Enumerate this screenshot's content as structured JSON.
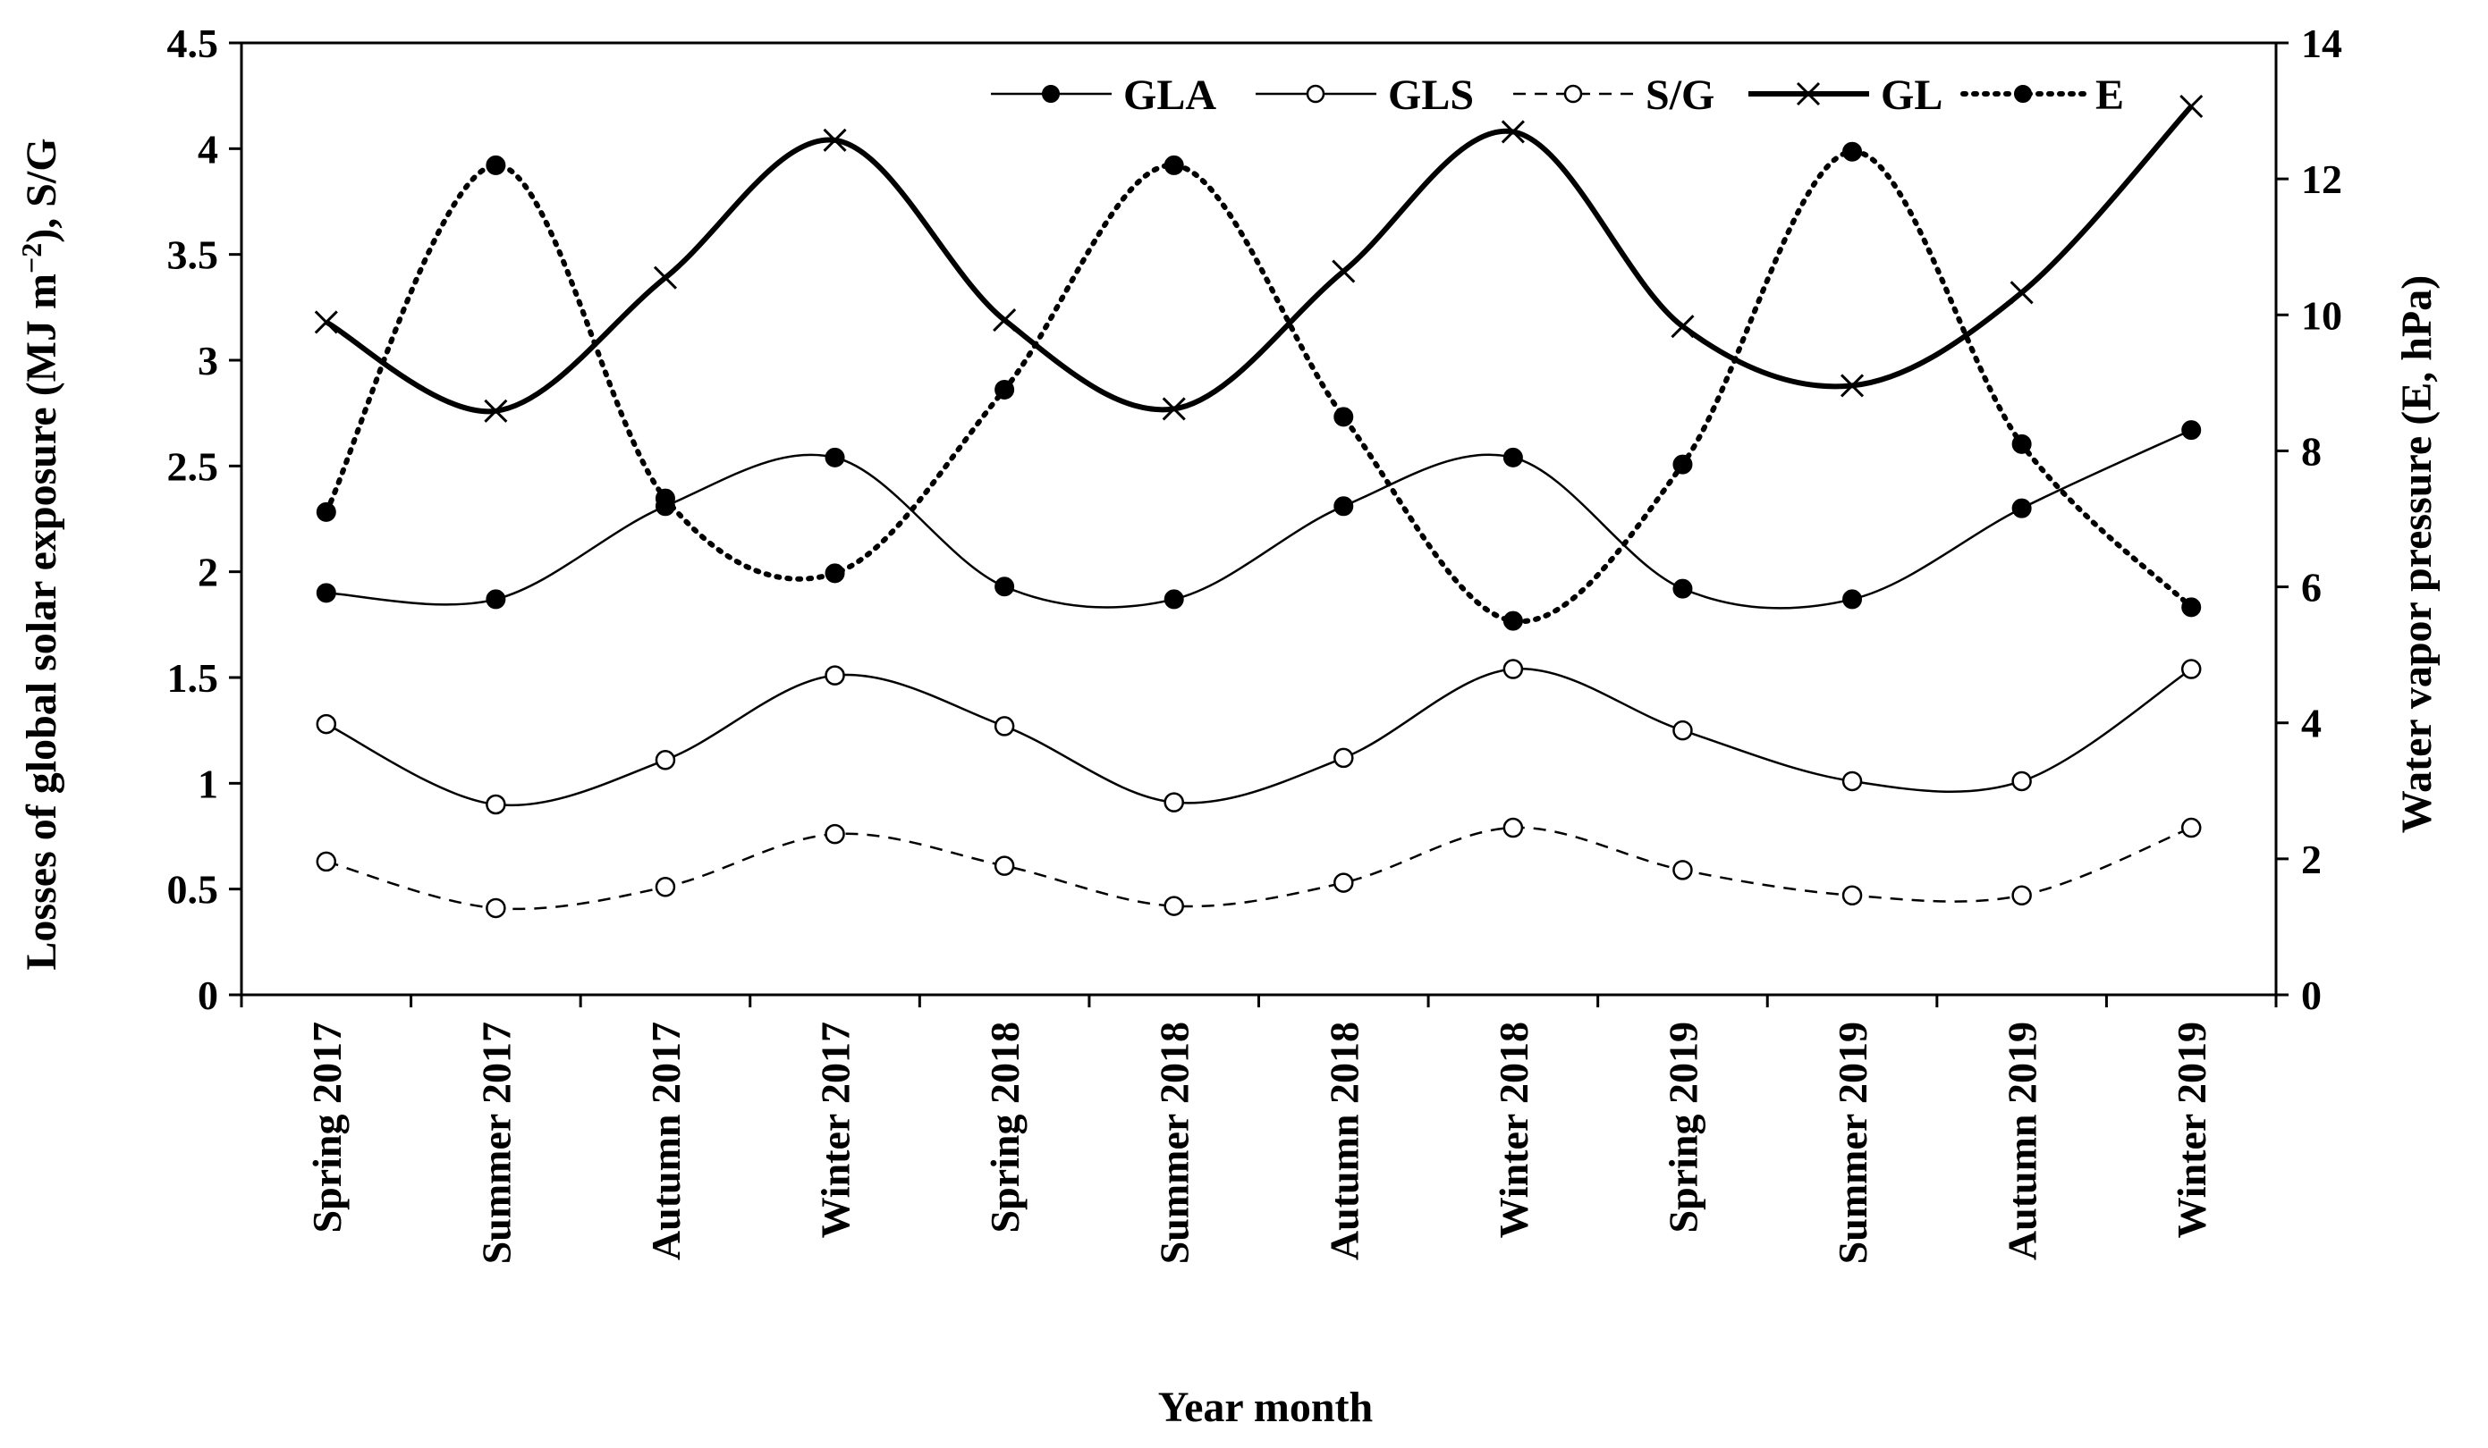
{
  "chart_data": {
    "type": "line",
    "categories": [
      "Spring 2017",
      "Summer 2017",
      "Autumn 2017",
      "Winter 2017",
      "Spring 2018",
      "Summer 2018",
      "Autumn 2018",
      "Winter 2018",
      "Spring 2019",
      "Summer 2019",
      "Autumn 2019",
      "Winter 2019"
    ],
    "xlabel": "Year month",
    "ylabel": "Losses of global solar exposure (MJ m^-2), S/G",
    "ylabel_parts": {
      "before": "Losses of global solar exposure (MJ m",
      "sup": "−2",
      "after": "), S/G"
    },
    "y2label": "Water vapor pressure (E, hPa)",
    "ylim": [
      0,
      4.5
    ],
    "yticks": [
      "0",
      "0.5",
      "1",
      "1.5",
      "2",
      "2.5",
      "3",
      "3.5",
      "4",
      "4.5"
    ],
    "y2lim": [
      0,
      14
    ],
    "y2ticks": [
      "0",
      "2",
      "4",
      "6",
      "8",
      "10",
      "12",
      "14"
    ],
    "legend_position": "top-right",
    "series": [
      {
        "name": "GLA",
        "axis": "left",
        "values": [
          1.9,
          1.87,
          2.31,
          2.54,
          1.93,
          1.87,
          2.31,
          2.54,
          1.92,
          1.87,
          2.3,
          2.67
        ],
        "marker": "filled-circle",
        "line": "thin-solid",
        "color": "#000000"
      },
      {
        "name": "GLS",
        "axis": "left",
        "values": [
          1.28,
          0.9,
          1.11,
          1.51,
          1.27,
          0.91,
          1.12,
          1.54,
          1.25,
          1.01,
          1.01,
          1.54
        ],
        "marker": "open-circle",
        "line": "thin-solid",
        "color": "#000000"
      },
      {
        "name": "S/G",
        "axis": "left",
        "values": [
          0.63,
          0.41,
          0.51,
          0.76,
          0.61,
          0.42,
          0.53,
          0.79,
          0.59,
          0.47,
          0.47,
          0.79
        ],
        "marker": "open-circle",
        "line": "dashed",
        "color": "#000000"
      },
      {
        "name": "GL",
        "axis": "left",
        "values": [
          3.18,
          2.76,
          3.39,
          4.04,
          3.19,
          2.77,
          3.42,
          4.08,
          3.16,
          2.88,
          3.32,
          4.2
        ],
        "marker": "cross",
        "line": "thick-solid",
        "color": "#000000"
      },
      {
        "name": "E",
        "axis": "right",
        "values": [
          7.1,
          12.2,
          7.3,
          6.2,
          8.9,
          12.2,
          8.5,
          5.5,
          7.8,
          12.4,
          8.1,
          5.7
        ],
        "marker": "filled-circle",
        "line": "dotted",
        "color": "#000000"
      }
    ]
  }
}
